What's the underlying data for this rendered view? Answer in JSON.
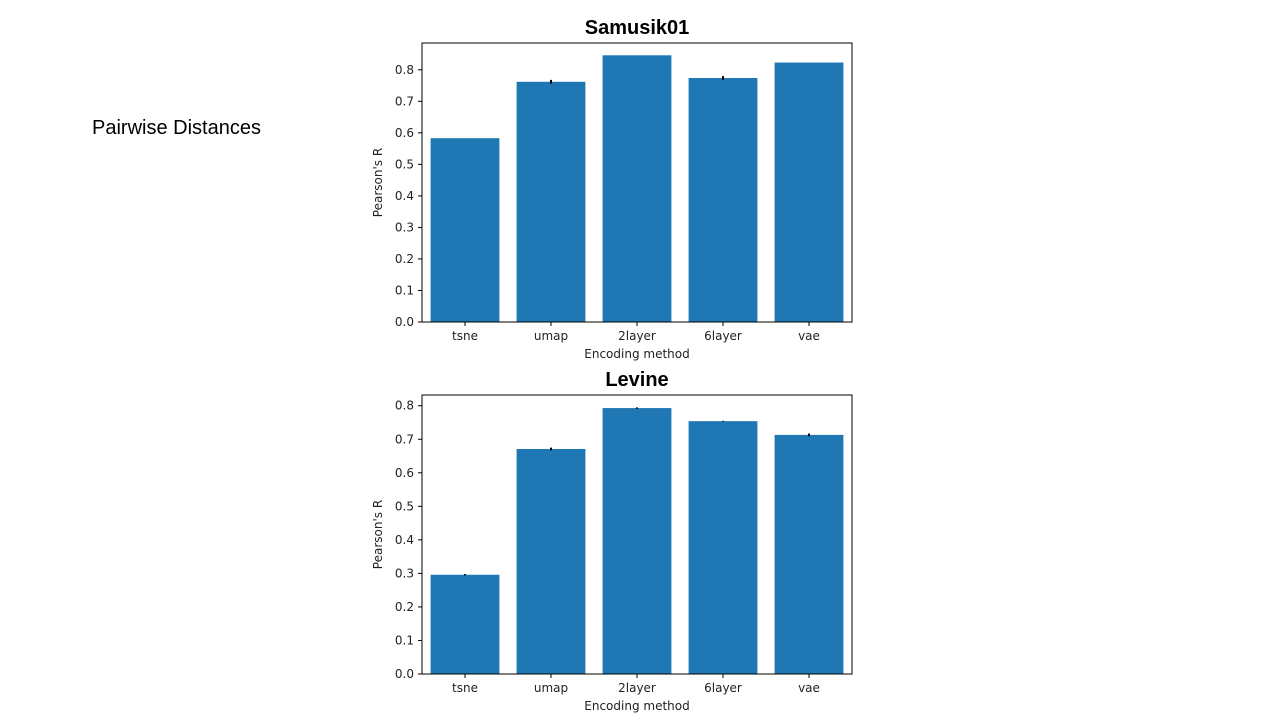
{
  "slide": {
    "side_label": "Pairwise Distances"
  },
  "colors": {
    "bar": "#1f77b4",
    "errorbar": "#000000",
    "axes": "#000000"
  },
  "chart_data": [
    {
      "type": "bar",
      "title": "Samusik01",
      "xlabel": "Encoding method",
      "ylabel": "Pearson's R",
      "categories": [
        "tsne",
        "umap",
        "2layer",
        "6layer",
        "vae"
      ],
      "values": [
        0.583,
        0.762,
        0.846,
        0.774,
        0.823
      ],
      "errors": [
        0.0,
        0.006,
        0.0,
        0.006,
        0.0
      ],
      "ylim": [
        0,
        0.885
      ],
      "yticks": [
        0.0,
        0.1,
        0.2,
        0.3,
        0.4,
        0.5,
        0.6,
        0.7,
        0.8
      ],
      "ytick_labels": [
        "0.0",
        "0.1",
        "0.2",
        "0.3",
        "0.4",
        "0.5",
        "0.6",
        "0.7",
        "0.8"
      ],
      "grid": false,
      "legend": "none"
    },
    {
      "type": "bar",
      "title": "Levine",
      "xlabel": "Encoding method",
      "ylabel": "Pearson's R",
      "categories": [
        "tsne",
        "umap",
        "2layer",
        "6layer",
        "vae"
      ],
      "values": [
        0.296,
        0.671,
        0.793,
        0.754,
        0.713
      ],
      "errors": [
        0.002,
        0.004,
        0.002,
        0.001,
        0.004
      ],
      "ylim": [
        0,
        0.832
      ],
      "yticks": [
        0.0,
        0.1,
        0.2,
        0.3,
        0.4,
        0.5,
        0.6,
        0.7,
        0.8
      ],
      "ytick_labels": [
        "0.0",
        "0.1",
        "0.2",
        "0.3",
        "0.4",
        "0.5",
        "0.6",
        "0.7",
        "0.8"
      ],
      "grid": false,
      "legend": "none"
    }
  ]
}
